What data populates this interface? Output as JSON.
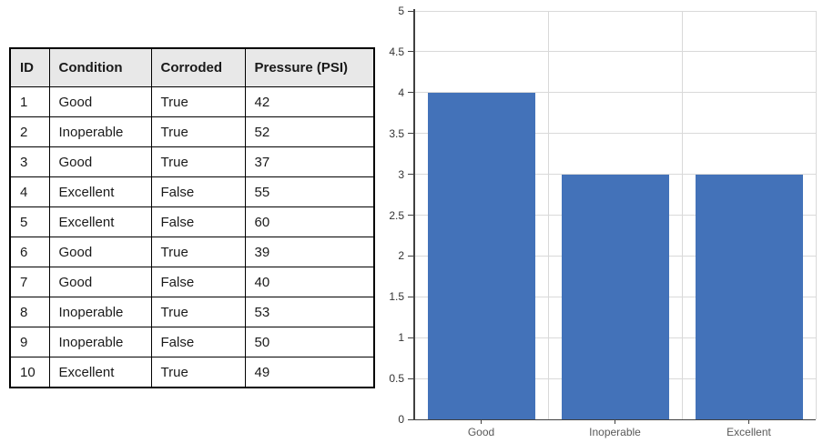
{
  "table": {
    "headers": [
      "ID",
      "Condition",
      "Corroded",
      "Pressure (PSI)"
    ],
    "rows": [
      [
        "1",
        "Good",
        "True",
        "42"
      ],
      [
        "2",
        "Inoperable",
        "True",
        "52"
      ],
      [
        "3",
        "Good",
        "True",
        "37"
      ],
      [
        "4",
        "Excellent",
        "False",
        "55"
      ],
      [
        "5",
        "Excellent",
        "False",
        "60"
      ],
      [
        "6",
        "Good",
        "True",
        "39"
      ],
      [
        "7",
        "Good",
        "False",
        "40"
      ],
      [
        "8",
        "Inoperable",
        "True",
        "53"
      ],
      [
        "9",
        "Inoperable",
        "False",
        "50"
      ],
      [
        "10",
        "Excellent",
        "True",
        "49"
      ]
    ]
  },
  "chart_data": {
    "type": "bar",
    "categories": [
      "Good",
      "Inoperable",
      "Excellent"
    ],
    "values": [
      4,
      3,
      3
    ],
    "title": "",
    "xlabel": "",
    "ylabel": "",
    "ylim": [
      0,
      5
    ],
    "ytick_step": 0.5,
    "ytick_labels": [
      "0",
      "0.5",
      "1",
      "1.5",
      "2",
      "2.5",
      "3",
      "3.5",
      "4",
      "4.5",
      "5"
    ],
    "grid": true,
    "legend": "none",
    "bar_color": "#4372B9",
    "gridline_color": "#D9D9D9",
    "axis_color": "#404040",
    "ytick_label_color": "#333333",
    "xtick_label_color": "#595959"
  }
}
